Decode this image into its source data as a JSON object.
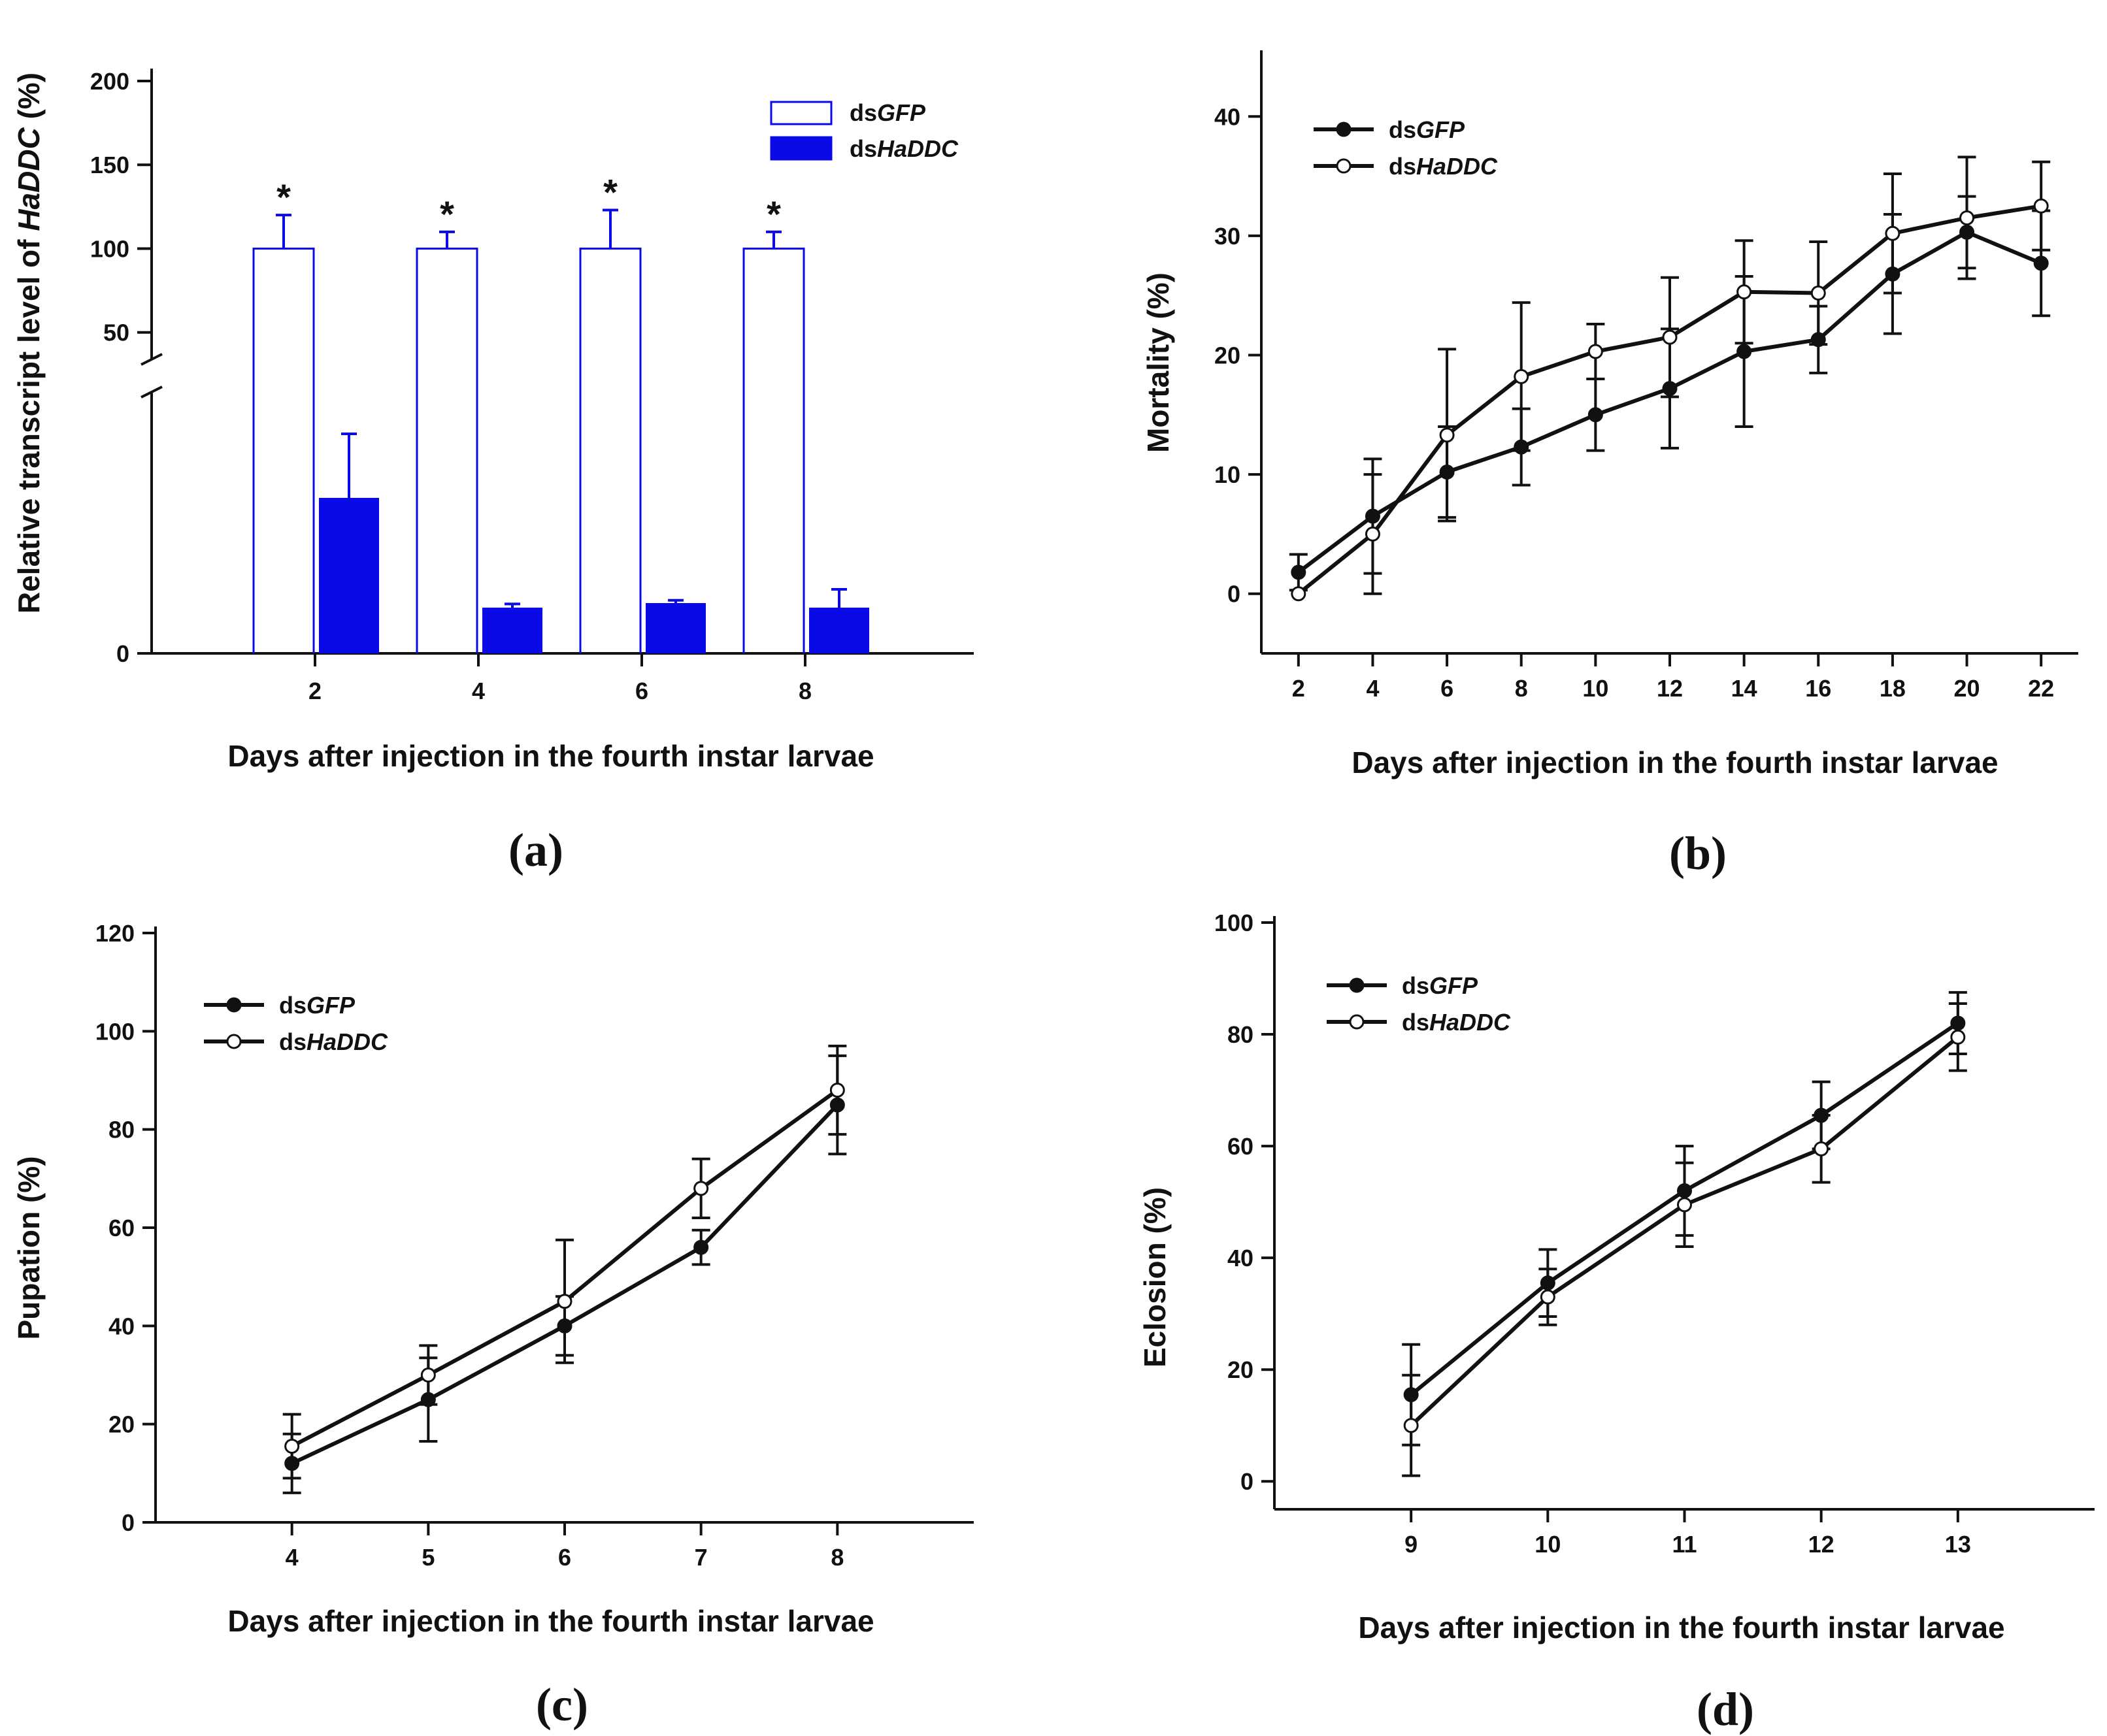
{
  "colors": {
    "axis": "#111111",
    "blue": "#0a0ae6",
    "black": "#111111",
    "white": "#ffffff"
  },
  "chart_data": [
    {
      "id": "a",
      "type": "bar",
      "panel_label": "(a)",
      "title": "",
      "xlabel": "Days after injection in the fourth instar larvae",
      "ylabel_prefix": "Relative transcript level of ",
      "ylabel_italic": "HaDDC",
      "ylabel_suffix": " (%)",
      "categories": [
        "2",
        "4",
        "6",
        "8"
      ],
      "series": [
        {
          "name": "dsGFP",
          "name_prefix": "ds",
          "name_italic": "GFP",
          "values": [
            100,
            100,
            100,
            100
          ],
          "errors": [
            20,
            10,
            23,
            10
          ],
          "style": "open"
        },
        {
          "name": "dsHaDDC",
          "name_prefix": "ds",
          "name_italic": "HaDDC",
          "values": [
            17,
            5,
            5.5,
            5
          ],
          "errors": [
            7,
            0.4,
            0.3,
            2
          ],
          "style": "filled"
        }
      ],
      "y_lower_range": [
        0,
        30
      ],
      "y_upper_range": [
        30,
        200
      ],
      "y_lower_ticks": [
        "0"
      ],
      "y_upper_ticks": [
        "50",
        "100",
        "150",
        "200"
      ],
      "axis_break": true,
      "significance": [
        "*",
        "*",
        "*",
        "*"
      ]
    },
    {
      "id": "b",
      "type": "line",
      "panel_label": "(b)",
      "title": "",
      "xlabel": "Days after injection in the fourth instar larvae",
      "ylabel": "Mortality (%)",
      "x": [
        2,
        4,
        6,
        8,
        10,
        12,
        14,
        16,
        18,
        20,
        22
      ],
      "x_ticks": [
        "2",
        "4",
        "6",
        "8",
        "10",
        "12",
        "14",
        "16",
        "18",
        "20",
        "22"
      ],
      "ylim": [
        -5,
        45
      ],
      "y_ticks": [
        "0",
        "10",
        "20",
        "30",
        "40"
      ],
      "series": [
        {
          "name": "dsGFP",
          "name_prefix": "ds",
          "name_italic": "GFP",
          "marker": "filled",
          "values": [
            1.8,
            6.5,
            10.2,
            12.3,
            15.0,
            17.2,
            20.3,
            21.3,
            26.8,
            30.3,
            27.7
          ],
          "errors": [
            1.5,
            4.8,
            3.8,
            3.2,
            3.0,
            5.0,
            6.3,
            2.8,
            5.0,
            3.0,
            4.4
          ]
        },
        {
          "name": "dsHaDDC",
          "name_prefix": "ds",
          "name_italic": "HaDDC",
          "marker": "open",
          "values": [
            0,
            5.0,
            13.3,
            18.2,
            20.3,
            21.5,
            25.3,
            25.2,
            30.2,
            31.5,
            32.5
          ],
          "errors": [
            0,
            5.0,
            7.2,
            6.2,
            2.3,
            5.0,
            4.3,
            4.3,
            5.0,
            5.1,
            3.7
          ]
        }
      ]
    },
    {
      "id": "c",
      "type": "line",
      "panel_label": "(c)",
      "title": "",
      "xlabel": "Days after injection in the fourth instar larvae",
      "ylabel": "Pupation (%)",
      "x": [
        4,
        5,
        6,
        7,
        8
      ],
      "x_ticks": [
        "4",
        "5",
        "6",
        "7",
        "8"
      ],
      "xlim": [
        3,
        9
      ],
      "ylim": [
        0,
        120
      ],
      "y_ticks": [
        "0",
        "20",
        "40",
        "60",
        "80",
        "100",
        "120"
      ],
      "series": [
        {
          "name": "dsGFP",
          "name_prefix": "ds",
          "name_italic": "GFP",
          "marker": "filled",
          "values": [
            12,
            25,
            40,
            56,
            85
          ],
          "errors": [
            6,
            8.5,
            6,
            3.5,
            10
          ]
        },
        {
          "name": "dsHaDDC",
          "name_prefix": "ds",
          "name_italic": "HaDDC",
          "marker": "open",
          "values": [
            15.5,
            30,
            45,
            68,
            88
          ],
          "errors": [
            6.5,
            6,
            12.5,
            6,
            9
          ]
        }
      ]
    },
    {
      "id": "d",
      "type": "line",
      "panel_label": "(d)",
      "title": "",
      "xlabel": "Days after injection in the fourth instar larvae",
      "ylabel": "Eclosion (%)",
      "x": [
        9,
        10,
        11,
        12,
        13
      ],
      "x_ticks": [
        "9",
        "10",
        "11",
        "12",
        "13"
      ],
      "xlim": [
        8,
        14
      ],
      "ylim": [
        -5,
        100
      ],
      "y_ticks": [
        "0",
        "20",
        "40",
        "60",
        "80",
        "100"
      ],
      "series": [
        {
          "name": "dsGFP",
          "name_prefix": "ds",
          "name_italic": "GFP",
          "marker": "filled",
          "values": [
            15.5,
            35.5,
            52,
            65.5,
            82
          ],
          "errors": [
            9,
            6,
            8,
            6,
            5.5
          ]
        },
        {
          "name": "dsHaDDC",
          "name_prefix": "ds",
          "name_italic": "HaDDC",
          "marker": "open",
          "values": [
            10,
            33,
            49.5,
            59.5,
            79.5
          ],
          "errors": [
            9,
            5,
            7.5,
            6,
            6
          ]
        }
      ]
    }
  ]
}
